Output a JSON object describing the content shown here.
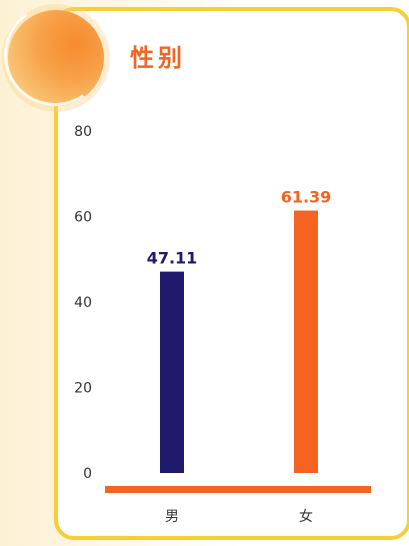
{
  "header": {
    "title": "性别"
  },
  "colors": {
    "male": "#1f1a6b",
    "female": "#f56322",
    "baseline": "#f26522",
    "border": "#f6ce35"
  },
  "chart_data": {
    "type": "bar",
    "categories": [
      "男",
      "女"
    ],
    "values": [
      47.11,
      61.39
    ],
    "data_labels": [
      "47.11",
      "61.39"
    ],
    "yticks": [
      "0",
      "20",
      "40",
      "60",
      "80"
    ],
    "ylim": [
      0,
      80
    ],
    "grid": false,
    "legend": "none"
  }
}
